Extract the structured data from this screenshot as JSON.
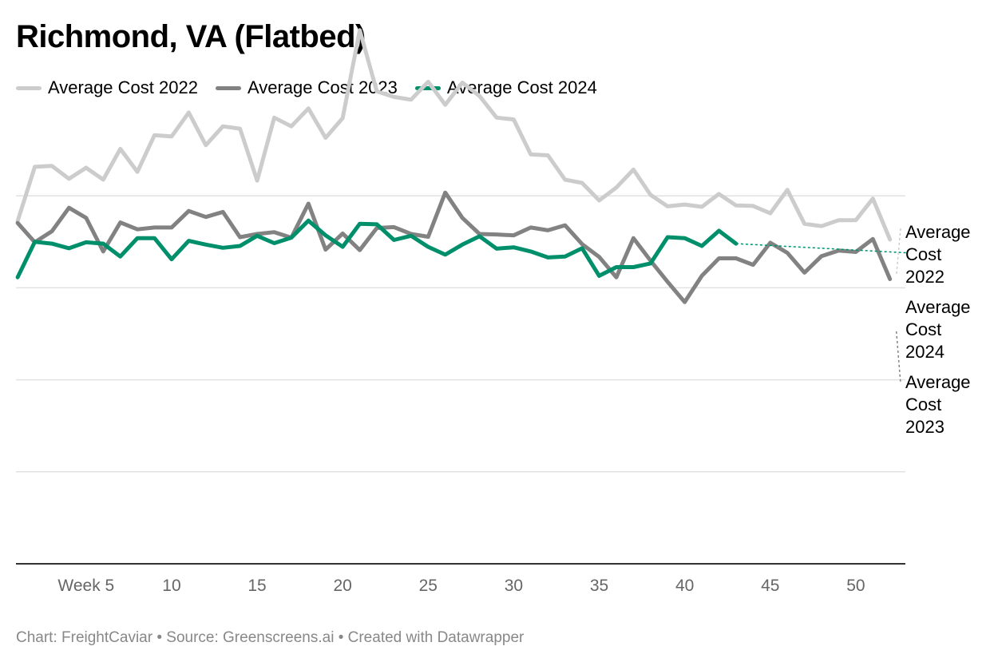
{
  "title": "Richmond, VA (Flatbed)",
  "colors": {
    "series_2022": "#cccccc",
    "series_2023": "#828282",
    "series_2024": "#008f6b",
    "grid": "#e2e2e2",
    "axis": "#333333",
    "tick_text": "#666666"
  },
  "footer": "Chart: FreightCaviar • Source: Greenscreens.ai • Created with Datawrapper",
  "chart_data": {
    "type": "line",
    "title": "Richmond, VA (Flatbed)",
    "xlabel": "",
    "ylabel": "",
    "x_range": [
      0.9,
      52.9
    ],
    "ylim": [
      0,
      100
    ],
    "y_gridlines": [
      20,
      40,
      60,
      80
    ],
    "y_tick_labels_shown": false,
    "x_ticks": [
      {
        "value": 5,
        "label": "Week 5"
      },
      {
        "value": 10,
        "label": "10"
      },
      {
        "value": 15,
        "label": "15"
      },
      {
        "value": 20,
        "label": "20"
      },
      {
        "value": 25,
        "label": "25"
      },
      {
        "value": 30,
        "label": "30"
      },
      {
        "value": 35,
        "label": "35"
      },
      {
        "value": 40,
        "label": "40"
      },
      {
        "value": 45,
        "label": "45"
      },
      {
        "value": 50,
        "label": "50"
      }
    ],
    "legend_position": "top-left",
    "series": [
      {
        "name": "Average Cost 2022",
        "key": "2022",
        "end_label": [
          "Average",
          "Cost",
          "2022"
        ],
        "values": [
          74.5,
          86.3,
          86.5,
          83.7,
          86.1,
          83.5,
          90.2,
          85.2,
          93.2,
          92.9,
          98.1,
          91.0,
          95.1,
          94.6,
          83.3,
          97.0,
          95.1,
          99.0,
          92.6,
          96.9,
          116.0,
          102.7,
          101.5,
          100.9,
          104.8,
          99.8,
          104.6,
          101.7,
          97.0,
          96.6,
          89.0,
          88.8,
          83.5,
          82.8,
          79.0,
          81.8,
          85.7,
          80.2,
          77.7,
          78.1,
          77.6,
          80.4,
          77.9,
          77.8,
          76.2,
          81.3,
          73.9,
          73.4,
          74.7,
          74.7,
          79.4,
          70.5
        ]
      },
      {
        "name": "Average Cost 2023",
        "key": "2023",
        "end_label": [
          "Average",
          "Cost",
          "2023"
        ],
        "values": [
          74.1,
          69.9,
          72.3,
          77.4,
          75.2,
          67.9,
          74.2,
          72.7,
          73.1,
          73.1,
          76.7,
          75.4,
          76.5,
          71.0,
          71.7,
          72.1,
          70.9,
          78.3,
          68.3,
          71.8,
          68.2,
          73.0,
          73.2,
          71.7,
          71.1,
          80.7,
          75.2,
          71.7,
          71.6,
          71.4,
          73.1,
          72.5,
          73.6,
          69.5,
          66.7,
          62.3,
          70.8,
          65.9,
          61.3,
          56.9,
          62.6,
          66.4,
          66.4,
          65.0,
          69.8,
          67.6,
          63.3,
          66.9,
          68.1,
          67.8,
          70.6,
          61.9
        ]
      },
      {
        "name": "Average Cost 2024",
        "key": "2024",
        "end_label": [
          "Average",
          "Cost",
          "2024"
        ],
        "values": [
          62.3,
          70.0,
          69.6,
          68.6,
          69.9,
          69.6,
          66.8,
          70.8,
          70.8,
          66.2,
          70.2,
          69.4,
          68.7,
          69.1,
          71.3,
          69.7,
          70.9,
          74.6,
          71.4,
          68.9,
          73.9,
          73.8,
          70.4,
          71.3,
          68.9,
          67.2,
          69.4,
          71.2,
          68.5,
          68.8,
          67.9,
          66.6,
          66.8,
          68.6,
          62.6,
          64.5,
          64.5,
          65.3,
          71.0,
          70.8,
          69.1,
          72.4,
          69.6
        ]
      }
    ],
    "projection": {
      "series": "Average Cost 2024",
      "from": {
        "x": 43,
        "y": 69.6
      },
      "to": {
        "x": 53,
        "y": 67.6
      },
      "style": "dotted"
    }
  }
}
